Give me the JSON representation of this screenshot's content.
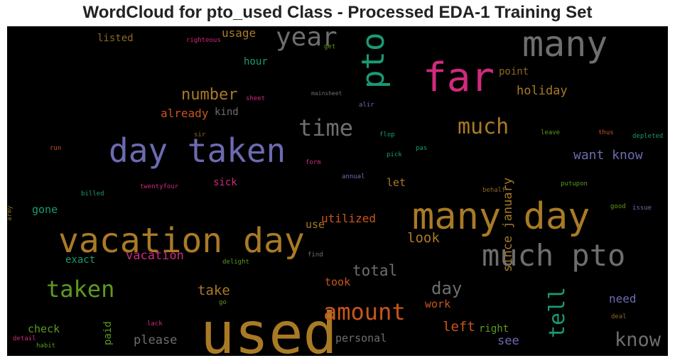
{
  "title": "WordCloud for pto_used Class - Processed EDA-1 Training Set",
  "colors": {
    "grey": "#6e6e6e",
    "gold": "#a97a26",
    "purple": "#6c6bb0",
    "pink": "#d02a7d",
    "orange": "#c8561a",
    "teal": "#1a9a74",
    "green": "#5c9a1e",
    "darkgold": "#8a6a20"
  },
  "words": [
    {
      "text": "used",
      "color": "gold"
    },
    {
      "text": "many day",
      "color": "gold"
    },
    {
      "text": "vacation day",
      "color": "gold"
    },
    {
      "text": "far",
      "color": "pink"
    },
    {
      "text": "many",
      "color": "grey"
    },
    {
      "text": "day taken",
      "color": "purple"
    },
    {
      "text": "much pto",
      "color": "grey"
    },
    {
      "text": "pto",
      "color": "teal"
    },
    {
      "text": "year",
      "color": "grey"
    },
    {
      "text": "time",
      "color": "grey"
    },
    {
      "text": "taken",
      "color": "green"
    },
    {
      "text": "much",
      "color": "gold"
    },
    {
      "text": "amount",
      "color": "orange"
    },
    {
      "text": "tell",
      "color": "teal"
    },
    {
      "text": "know",
      "color": "grey"
    },
    {
      "text": "number",
      "color": "gold"
    },
    {
      "text": "day",
      "color": "grey"
    },
    {
      "text": "total",
      "color": "grey"
    },
    {
      "text": "want know",
      "color": "purple"
    },
    {
      "text": "holiday",
      "color": "gold"
    },
    {
      "text": "since january",
      "color": "gold"
    },
    {
      "text": "take",
      "color": "gold"
    },
    {
      "text": "look",
      "color": "gold"
    },
    {
      "text": "left",
      "color": "orange"
    },
    {
      "text": "vacation",
      "color": "pink"
    },
    {
      "text": "please",
      "color": "grey"
    },
    {
      "text": "already",
      "color": "orange"
    },
    {
      "text": "usage",
      "color": "gold"
    },
    {
      "text": "utilized",
      "color": "orange"
    },
    {
      "text": "see",
      "color": "purple"
    },
    {
      "text": "need",
      "color": "purple"
    },
    {
      "text": "work",
      "color": "orange"
    },
    {
      "text": "personal",
      "color": "grey"
    },
    {
      "text": "check",
      "color": "green"
    },
    {
      "text": "gone",
      "color": "teal"
    },
    {
      "text": "point",
      "color": "darkgold"
    },
    {
      "text": "listed",
      "color": "darkgold"
    },
    {
      "text": "hour",
      "color": "teal"
    },
    {
      "text": "kind",
      "color": "grey"
    },
    {
      "text": "sick",
      "color": "pink"
    },
    {
      "text": "let",
      "color": "gold"
    },
    {
      "text": "use",
      "color": "gold"
    },
    {
      "text": "took",
      "color": "orange"
    },
    {
      "text": "exact",
      "color": "teal"
    },
    {
      "text": "paid",
      "color": "green"
    },
    {
      "text": "right",
      "color": "green"
    },
    {
      "text": "sheet",
      "color": "pink"
    },
    {
      "text": "righteous",
      "color": "pink"
    },
    {
      "text": "get",
      "color": "green"
    },
    {
      "text": "mainsheet",
      "color": "grey"
    },
    {
      "text": "alir",
      "color": "purple"
    },
    {
      "text": "sir",
      "color": "darkgold"
    },
    {
      "text": "flop",
      "color": "teal"
    },
    {
      "text": "pas",
      "color": "teal"
    },
    {
      "text": "leave",
      "color": "green"
    },
    {
      "text": "thus",
      "color": "orange"
    },
    {
      "text": "depleted",
      "color": "teal"
    },
    {
      "text": "run",
      "color": "orange"
    },
    {
      "text": "form",
      "color": "pink"
    },
    {
      "text": "pick",
      "color": "teal"
    },
    {
      "text": "annual",
      "color": "purple"
    },
    {
      "text": "behalf",
      "color": "darkgold"
    },
    {
      "text": "putupon",
      "color": "green"
    },
    {
      "text": "billed",
      "color": "teal"
    },
    {
      "text": "twentyfour",
      "color": "pink"
    },
    {
      "text": "good",
      "color": "green"
    },
    {
      "text": "issue",
      "color": "purple"
    },
    {
      "text": "army",
      "color": "darkgold"
    },
    {
      "text": "find",
      "color": "grey"
    },
    {
      "text": "delight",
      "color": "green"
    },
    {
      "text": "go",
      "color": "green"
    },
    {
      "text": "lack",
      "color": "pink"
    },
    {
      "text": "deal",
      "color": "darkgold"
    },
    {
      "text": "detail",
      "color": "pink"
    },
    {
      "text": "habit",
      "color": "green"
    }
  ]
}
